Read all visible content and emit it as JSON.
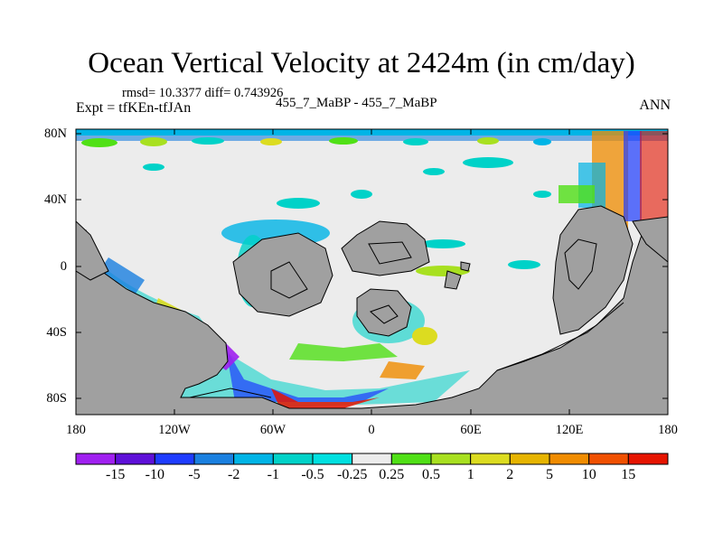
{
  "title": "Ocean Vertical Velocity at 2424m (in cm/day)",
  "stats": "rmsd= 10.3377 diff= 0.743926",
  "experiment": "Expt = tfKEn-tfJAn",
  "experiment_pair": "455_7_MaBP - 455_7_MaBP",
  "season": "ANN",
  "lat_labels": [
    "80N",
    "40N",
    "0",
    "40S",
    "80S"
  ],
  "lon_labels": [
    "180",
    "120W",
    "60W",
    "0",
    "60E",
    "120E",
    "180"
  ],
  "colorbar": {
    "labels": [
      "-15",
      "-10",
      "-5",
      "-2",
      "-1",
      "-0.5",
      "-0.25",
      "0.25",
      "0.5",
      "1",
      "2",
      "5",
      "10",
      "15"
    ],
    "colors": [
      "#a020f0",
      "#5e10d8",
      "#1e3cff",
      "#1a80e0",
      "#00b4e6",
      "#00d2c8",
      "#00e0e0",
      "#ececec",
      "#50e016",
      "#a8e020",
      "#dcdc20",
      "#e6b400",
      "#f08c00",
      "#f05000",
      "#e61400"
    ]
  },
  "colors": {
    "land": "#a0a0a0",
    "ocean_near_zero": "#ececec",
    "coast": "#000000"
  }
}
